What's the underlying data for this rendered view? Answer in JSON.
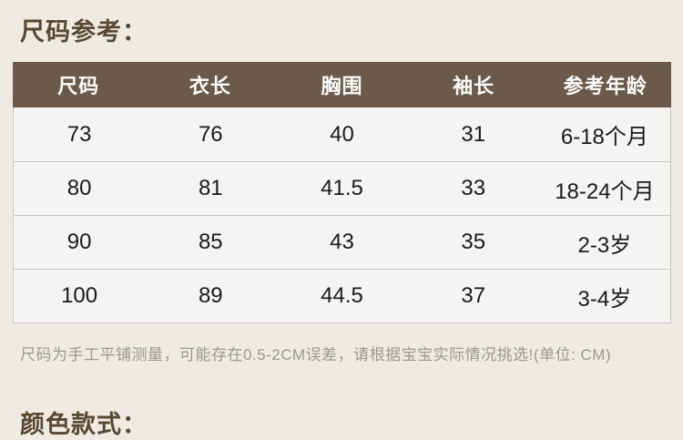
{
  "size_section": {
    "title": "尺码参考："
  },
  "size_table": {
    "columns": [
      "尺码",
      "衣长",
      "胸围",
      "袖长",
      "参考年龄"
    ],
    "rows": [
      [
        "73",
        "76",
        "40",
        "31",
        "6-18个月"
      ],
      [
        "80",
        "81",
        "41.5",
        "33",
        "18-24个月"
      ],
      [
        "90",
        "85",
        "43",
        "35",
        "2-3岁"
      ],
      [
        "100",
        "89",
        "44.5",
        "37",
        "3-4岁"
      ]
    ],
    "note": "尺码为手工平铺测量，可能存在0.5-2CM误差，请根据宝宝实际情况挑选!(单位: CM)",
    "unit": "CM"
  },
  "color_section": {
    "title": "颜色款式："
  },
  "colors": {
    "page_bg": "#efebe3",
    "heading_text": "#5a4932",
    "table_header_bg": "#6b5a49",
    "table_header_text": "#ffffff",
    "row_bg": "#f4f4f2",
    "table_border": "#c9c7c2",
    "cell_text": "#1a1a1a",
    "note_text": "#9c988f"
  }
}
